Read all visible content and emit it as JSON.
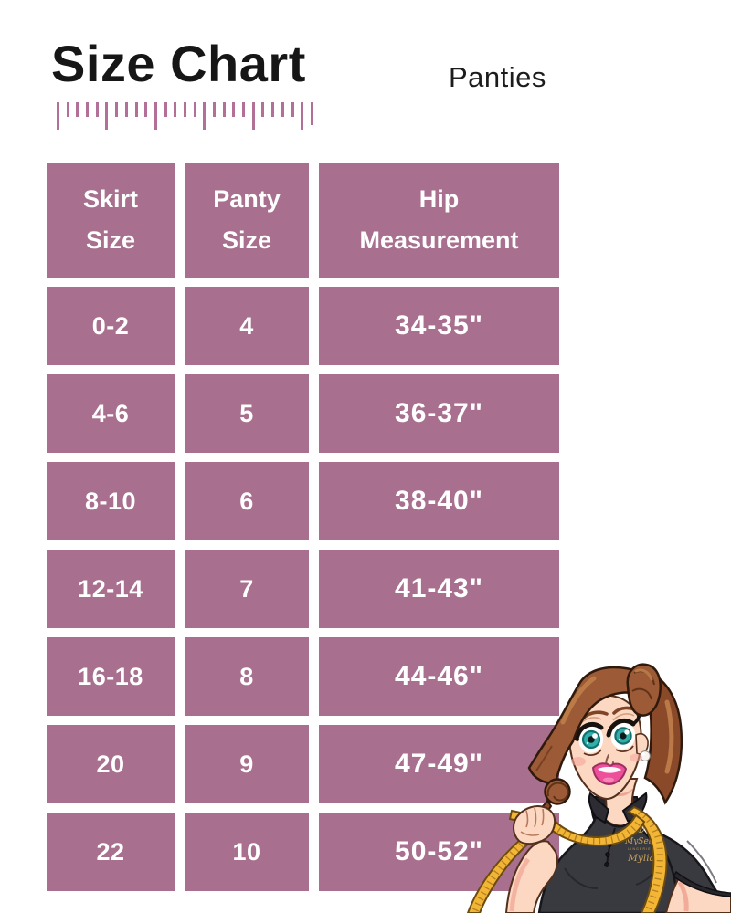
{
  "chart_data": {
    "type": "table",
    "title": "Size Chart",
    "subtitle": "Panties",
    "columns": [
      "Skirt Size",
      "Panty Size",
      "Hip Measurement"
    ],
    "rows": [
      [
        "0-2",
        "4",
        "34-35\""
      ],
      [
        "4-6",
        "5",
        "36-37\""
      ],
      [
        "8-10",
        "6",
        "38-40\""
      ],
      [
        "12-14",
        "7",
        "41-43\""
      ],
      [
        "16-18",
        "8",
        "44-46\""
      ],
      [
        "20",
        "9",
        "47-49\""
      ],
      [
        "22",
        "10",
        "50-52\""
      ]
    ]
  },
  "mascot": {
    "brand_name": "MySelf",
    "brand_subtitle": "LINGERIE",
    "brand_signature": "Mylia"
  },
  "ruler": {
    "tick_count": 27,
    "major_every": 5
  },
  "colors": {
    "cell_background": "#a8708e",
    "cell_text": "#ffffff",
    "ruler_tick": "#b26f97",
    "title_text": "#161616",
    "page_background": "#ffffff",
    "tape_gold": "#f3b535",
    "hair_brown": "#9c5a36",
    "shirt_charcoal": "#393940",
    "eye_teal": "#2fb0aa",
    "lip_pink": "#ee4f9b"
  }
}
